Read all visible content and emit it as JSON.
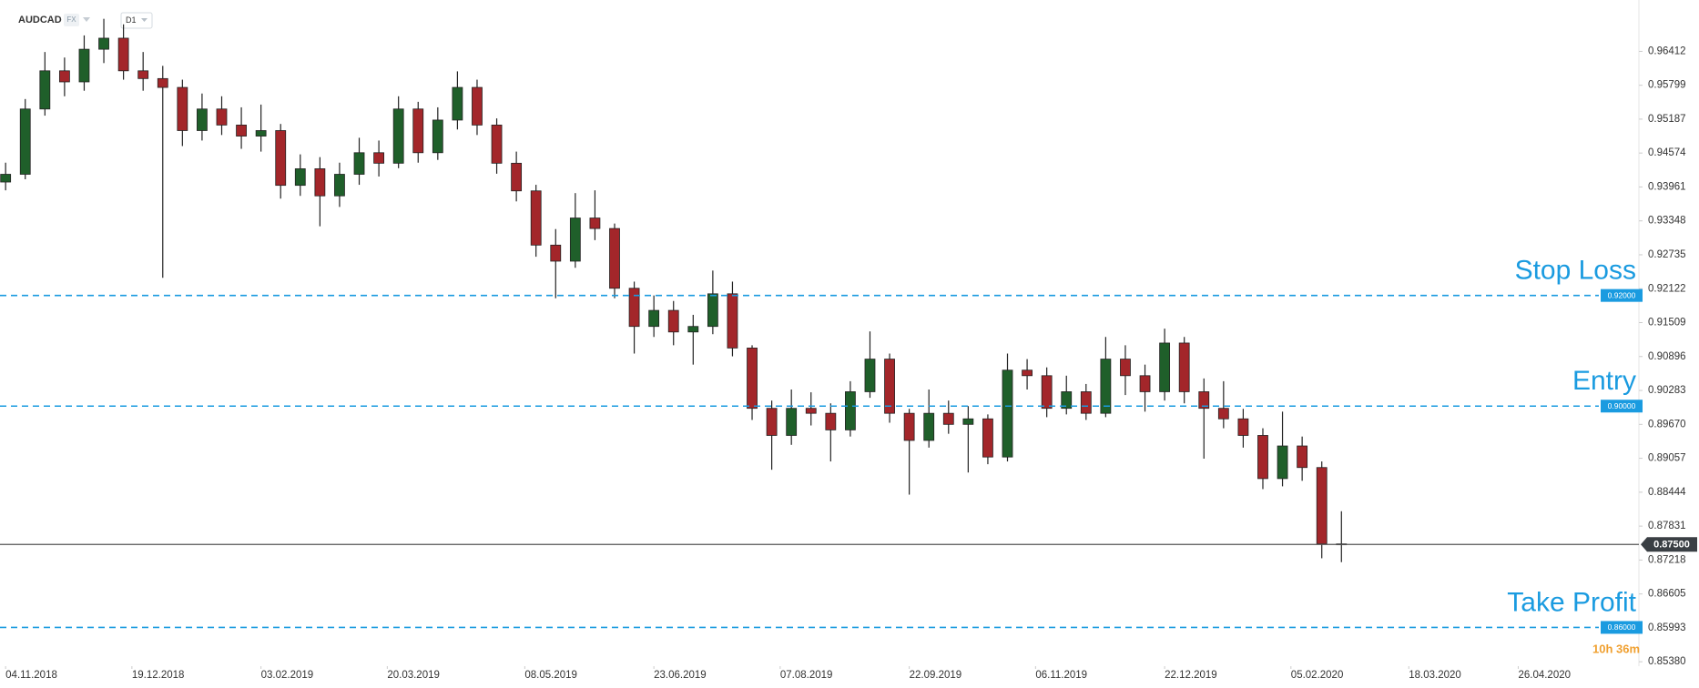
{
  "chart_data": {
    "type": "candlestick",
    "symbol": "AUDCAD",
    "market": "FX",
    "timeframe": "D1",
    "up_color": "#1f5f2a",
    "down_color": "#a3262a",
    "level_color": "#1a9be0",
    "x": [
      "04.11.2018",
      "11.11.2018",
      "18.11.2018",
      "25.11.2018",
      "02.12.2018",
      "09.12.2018",
      "16.12.2018",
      "23.12.2018",
      "30.12.2018",
      "06.01.2019",
      "13.01.2019",
      "20.01.2019",
      "27.01.2019",
      "03.02.2019",
      "10.02.2019",
      "17.02.2019",
      "24.02.2019",
      "03.03.2019",
      "10.03.2019",
      "17.03.2019",
      "24.03.2019",
      "31.03.2019",
      "07.04.2019",
      "14.04.2019",
      "21.04.2019",
      "28.04.2019",
      "05.05.2019",
      "12.05.2019",
      "19.05.2019",
      "26.05.2019",
      "02.06.2019",
      "09.06.2019",
      "16.06.2019",
      "23.06.2019",
      "30.06.2019",
      "07.07.2019",
      "14.07.2019",
      "21.07.2019",
      "28.07.2019",
      "04.08.2019",
      "11.08.2019",
      "18.08.2019",
      "25.08.2019",
      "01.09.2019",
      "08.09.2019",
      "15.09.2019",
      "22.09.2019",
      "29.09.2019",
      "06.10.2019",
      "13.10.2019",
      "20.10.2019",
      "27.10.2019",
      "03.11.2019",
      "10.11.2019",
      "17.11.2019",
      "24.11.2019",
      "01.12.2019",
      "08.12.2019",
      "15.12.2019",
      "22.12.2019",
      "29.12.2019",
      "05.01.2020",
      "12.01.2020",
      "19.01.2020",
      "26.01.2020",
      "02.02.2020",
      "09.02.2020",
      "16.02.2020",
      "23.02.2020"
    ],
    "open": [
      0.9405,
      0.9419,
      0.9537,
      0.9606,
      0.9586,
      0.9645,
      0.9665,
      0.9606,
      0.9592,
      0.9576,
      0.9498,
      0.9537,
      0.9508,
      0.9488,
      0.9498,
      0.9399,
      0.9429,
      0.938,
      0.9419,
      0.9458,
      0.9439,
      0.9537,
      0.9458,
      0.9517,
      0.9576,
      0.9508,
      0.9439,
      0.9389,
      0.9291,
      0.9262,
      0.934,
      0.9321,
      0.9213,
      0.9144,
      0.9173,
      0.9134,
      0.9144,
      0.9203,
      0.9105,
      0.8996,
      0.8947,
      0.8996,
      0.8987,
      0.8957,
      0.9026,
      0.9085,
      0.8987,
      0.8938,
      0.8987,
      0.8967,
      0.8977,
      0.8908,
      0.9065,
      0.9055,
      0.8996,
      0.9026,
      0.8987,
      0.9085,
      0.9055,
      0.9026,
      0.9114,
      0.9026,
      0.8996,
      0.8977,
      0.8947,
      0.8869,
      0.8928,
      0.8889,
      0.8751
    ],
    "high": [
      0.944,
      0.9555,
      0.964,
      0.963,
      0.967,
      0.97,
      0.969,
      0.964,
      0.9615,
      0.959,
      0.9565,
      0.956,
      0.954,
      0.9545,
      0.951,
      0.9455,
      0.945,
      0.944,
      0.9485,
      0.948,
      0.956,
      0.955,
      0.954,
      0.9605,
      0.959,
      0.952,
      0.946,
      0.94,
      0.932,
      0.9385,
      0.939,
      0.933,
      0.9225,
      0.92,
      0.919,
      0.9165,
      0.9245,
      0.9225,
      0.911,
      0.901,
      0.903,
      0.9025,
      0.9005,
      0.9045,
      0.9135,
      0.9095,
      0.8995,
      0.903,
      0.901,
      0.9,
      0.8985,
      0.9095,
      0.9085,
      0.907,
      0.9055,
      0.904,
      0.9125,
      0.911,
      0.9075,
      0.914,
      0.9125,
      0.905,
      0.9045,
      0.8995,
      0.896,
      0.899,
      0.8945,
      0.89,
      0.881
    ],
    "low": [
      0.939,
      0.941,
      0.9525,
      0.956,
      0.957,
      0.962,
      0.959,
      0.957,
      0.9232,
      0.947,
      0.948,
      0.949,
      0.9465,
      0.946,
      0.9375,
      0.938,
      0.9325,
      0.936,
      0.94,
      0.9415,
      0.943,
      0.944,
      0.9445,
      0.95,
      0.949,
      0.942,
      0.937,
      0.927,
      0.9195,
      0.925,
      0.93,
      0.9195,
      0.9095,
      0.9125,
      0.911,
      0.9075,
      0.913,
      0.909,
      0.8975,
      0.8885,
      0.893,
      0.8965,
      0.89,
      0.8945,
      0.9015,
      0.897,
      0.884,
      0.8925,
      0.895,
      0.888,
      0.8895,
      0.89,
      0.903,
      0.898,
      0.8985,
      0.8975,
      0.898,
      0.902,
      0.899,
      0.901,
      0.9005,
      0.8905,
      0.896,
      0.8925,
      0.885,
      0.8855,
      0.8865,
      0.8725,
      0.8718
    ],
    "close": [
      0.9419,
      0.9537,
      0.9606,
      0.9586,
      0.9645,
      0.9665,
      0.9606,
      0.9592,
      0.9576,
      0.9498,
      0.9537,
      0.9508,
      0.9488,
      0.9498,
      0.9399,
      0.9429,
      0.938,
      0.9419,
      0.9458,
      0.9439,
      0.9537,
      0.9458,
      0.9517,
      0.9576,
      0.9508,
      0.9439,
      0.9389,
      0.9291,
      0.9262,
      0.934,
      0.9321,
      0.9213,
      0.9144,
      0.9173,
      0.9134,
      0.9144,
      0.9203,
      0.9105,
      0.8996,
      0.8947,
      0.8996,
      0.8987,
      0.8957,
      0.9026,
      0.9085,
      0.8987,
      0.8938,
      0.8987,
      0.8967,
      0.8977,
      0.8908,
      0.9065,
      0.9055,
      0.8996,
      0.9026,
      0.8987,
      0.9085,
      0.9055,
      0.9026,
      0.9114,
      0.9026,
      0.8996,
      0.8977,
      0.8947,
      0.8869,
      0.8928,
      0.8889,
      0.8751,
      0.875
    ],
    "xlim": [
      "02.11.2018",
      "08.06.2020"
    ],
    "xticks": [
      "04.11.2018",
      "19.12.2018",
      "03.02.2019",
      "20.03.2019",
      "08.05.2019",
      "23.06.2019",
      "07.08.2019",
      "22.09.2019",
      "06.11.2019",
      "22.12.2019",
      "05.02.2020",
      "18.03.2020",
      "26.04.2020"
    ],
    "ylim": [
      0.853,
      0.9734
    ],
    "yticks": [
      0.96412,
      0.95799,
      0.95187,
      0.94574,
      0.93961,
      0.93348,
      0.92735,
      0.92122,
      0.91509,
      0.90896,
      0.90283,
      {
        "value": 0.8967,
        "label": "0.89670"
      },
      0.89057,
      0.88444,
      0.87831,
      0.87218,
      0.86605,
      0.85993,
      {
        "value": 0.8538,
        "label": "0.85380"
      }
    ],
    "levels": [
      {
        "name": "Stop Loss",
        "value": 0.92,
        "label": "0.92000"
      },
      {
        "name": "Entry",
        "value": 0.9,
        "label": "0.90000"
      },
      {
        "name": "Take Profit",
        "value": 0.86,
        "label": "0.86000"
      }
    ],
    "current": {
      "value": 0.875,
      "label": "0.87500"
    },
    "countdown": "10h 36m"
  }
}
